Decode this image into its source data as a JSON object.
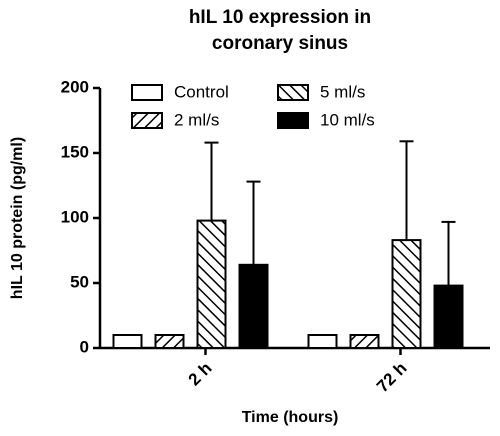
{
  "chart_data": {
    "type": "bar",
    "title": [
      "hIL 10 expression in",
      "coronary sinus"
    ],
    "x_label": "Time (hours)",
    "y_label": "hIL 10 protein (pg/ml)",
    "categories": [
      "2 h",
      "72 h"
    ],
    "series": [
      {
        "name": "Control",
        "color": "#ffffff",
        "hatch": "none",
        "values": [
          10,
          10
        ],
        "errors": [
          0,
          0
        ]
      },
      {
        "name": "2 ml/s",
        "color": "#ffffff",
        "hatch": "forward",
        "values": [
          10,
          10
        ],
        "errors": [
          0,
          0
        ]
      },
      {
        "name": "5 ml/s",
        "color": "#ffffff",
        "hatch": "backward",
        "values": [
          98,
          83
        ],
        "errors": [
          60,
          76
        ]
      },
      {
        "name": "10 ml/s",
        "color": "#000000",
        "hatch": "none",
        "values": [
          64,
          48
        ],
        "errors": [
          64,
          49
        ]
      }
    ],
    "ylim": [
      0,
      200
    ],
    "yticks": [
      0,
      50,
      100,
      150,
      200
    ],
    "grid": false,
    "legend_position": "top"
  }
}
